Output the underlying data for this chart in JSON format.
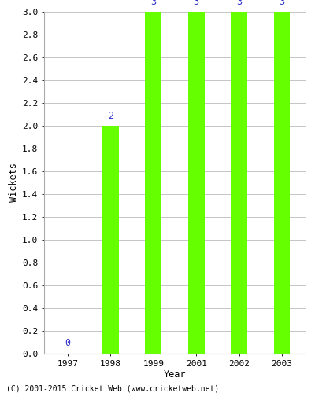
{
  "years": [
    1997,
    1998,
    1999,
    2001,
    2002,
    2003
  ],
  "wickets": [
    0,
    2,
    3,
    3,
    3,
    3
  ],
  "bar_color": "#66ff00",
  "label_color": "#3333cc",
  "label_fontsize": 8.5,
  "ylabel": "Wickets",
  "xlabel": "Year",
  "ylim": [
    0.0,
    3.0
  ],
  "footer": "(C) 2001-2015 Cricket Web (www.cricketweb.net)",
  "background_color": "#ffffff",
  "grid_color": "#bbbbbb",
  "tick_label_fontsize": 8,
  "axis_label_fontsize": 8.5,
  "bar_width": 0.38
}
